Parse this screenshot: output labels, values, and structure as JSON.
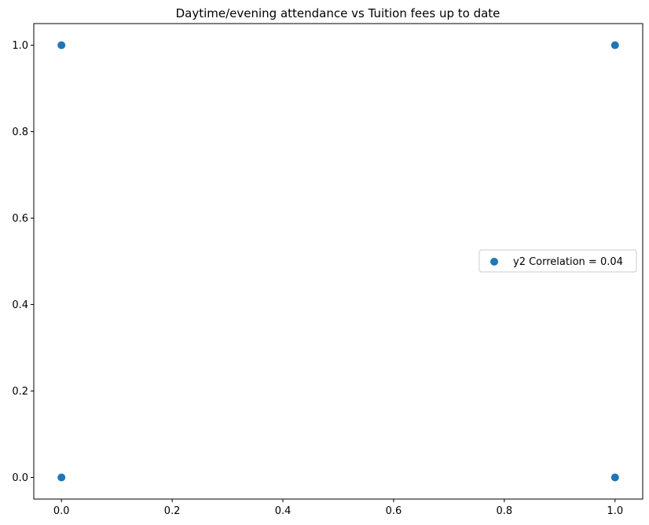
{
  "chart_data": {
    "type": "scatter",
    "title": "Daytime/evening attendance\t vs Tuition fees up to date",
    "xlabel": "",
    "ylabel": "",
    "xlim": [
      -0.05,
      1.05
    ],
    "ylim": [
      -0.05,
      1.05
    ],
    "xticks": [
      0.0,
      0.2,
      0.4,
      0.6,
      0.8,
      1.0
    ],
    "yticks": [
      0.0,
      0.2,
      0.4,
      0.6,
      0.8,
      1.0
    ],
    "xtick_labels": [
      "0.0",
      "0.2",
      "0.4",
      "0.6",
      "0.8",
      "1.0"
    ],
    "ytick_labels": [
      "0.0",
      "0.2",
      "0.4",
      "0.6",
      "0.8",
      "1.0"
    ],
    "grid": false,
    "legend_position": "center-right",
    "series": [
      {
        "name": "y2 Correlation = 0.04",
        "color": "#1f77b4",
        "points": [
          {
            "x": 0,
            "y": 0
          },
          {
            "x": 0,
            "y": 1
          },
          {
            "x": 1,
            "y": 0
          },
          {
            "x": 1,
            "y": 1
          }
        ]
      }
    ]
  }
}
